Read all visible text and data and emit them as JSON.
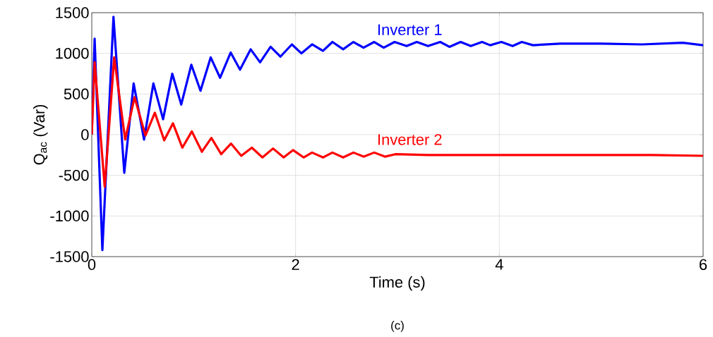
{
  "chart_data": {
    "type": "line",
    "xlabel": "Time (s)",
    "ylabel": "Q$_{ac}$ (Var)",
    "annotations": [
      "(c)"
    ],
    "xlim": [
      0,
      6
    ],
    "ylim": [
      -1500,
      1500
    ],
    "xticks": [
      0,
      2,
      4,
      6
    ],
    "yticks": [
      -1500,
      -1000,
      -500,
      0,
      500,
      1000,
      1500
    ],
    "grid": true,
    "series": [
      {
        "name": "Inverter 1",
        "color": "#0000ff",
        "x": [
          0,
          0.028,
          0.104,
          0.213,
          0.319,
          0.411,
          0.513,
          0.605,
          0.7,
          0.79,
          0.878,
          0.977,
          1.067,
          1.167,
          1.259,
          1.363,
          1.455,
          1.559,
          1.652,
          1.755,
          1.852,
          1.964,
          2.057,
          2.162,
          2.269,
          2.362,
          2.467,
          2.568,
          2.667,
          2.772,
          2.865,
          2.972,
          3.09,
          3.19,
          3.3,
          3.42,
          3.51,
          3.62,
          3.72,
          3.83,
          3.91,
          4.02,
          4.13,
          4.22,
          4.33,
          4.6,
          5.0,
          5.4,
          5.6,
          5.8,
          6.0
        ],
        "values": [
          0,
          1180,
          -1420,
          1450,
          -470,
          630,
          -60,
          630,
          190,
          750,
          370,
          860,
          540,
          950,
          700,
          1010,
          800,
          1050,
          890,
          1080,
          960,
          1110,
          1000,
          1110,
          1030,
          1140,
          1050,
          1140,
          1070,
          1140,
          1070,
          1140,
          1090,
          1140,
          1090,
          1140,
          1080,
          1140,
          1090,
          1140,
          1100,
          1140,
          1090,
          1140,
          1100,
          1120,
          1120,
          1110,
          1120,
          1130,
          1100
        ]
      },
      {
        "name": "Inverter 2",
        "color": "#ff0000",
        "x": [
          0,
          0.028,
          0.127,
          0.22,
          0.328,
          0.42,
          0.527,
          0.619,
          0.711,
          0.797,
          0.889,
          0.982,
          1.081,
          1.174,
          1.27,
          1.367,
          1.467,
          1.571,
          1.675,
          1.779,
          1.883,
          1.975,
          2.079,
          2.162,
          2.269,
          2.362,
          2.467,
          2.568,
          2.667,
          2.772,
          2.88,
          2.98,
          3.3,
          3.7,
          4.1,
          4.5,
          5.0,
          5.5,
          6.0
        ],
        "values": [
          0,
          890,
          -640,
          950,
          -60,
          460,
          -10,
          270,
          -70,
          140,
          -160,
          40,
          -210,
          -40,
          -240,
          -110,
          -260,
          -160,
          -280,
          -170,
          -280,
          -190,
          -280,
          -220,
          -280,
          -220,
          -280,
          -220,
          -270,
          -220,
          -270,
          -240,
          -250,
          -250,
          -250,
          -250,
          -250,
          -250,
          -260
        ]
      }
    ]
  }
}
